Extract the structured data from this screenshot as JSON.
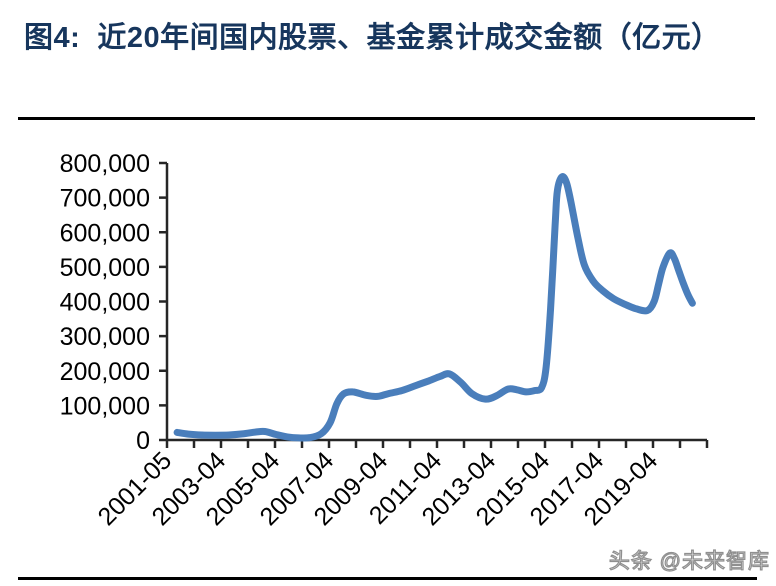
{
  "header": {
    "title": "图4:  近20年间国内股票、基金累计成交金额（亿元）",
    "title_color": "#17365D"
  },
  "watermark": {
    "text": "头条 @未来智库",
    "stroke_color": "#8f8f8f",
    "fill_color": "#efefef"
  },
  "chart_data": {
    "type": "line",
    "title": "近20年间国内股票、基金累计成交金额（亿元）",
    "unit": "亿元",
    "grid": false,
    "legend": false,
    "axis_color": "#262626",
    "y_axis": {
      "min": 0,
      "max": 800000,
      "step": 100000,
      "tick_labels": [
        "0",
        "100,000",
        "200,000",
        "300,000",
        "400,000",
        "500,000",
        "600,000",
        "700,000",
        "800,000"
      ]
    },
    "x_axis": {
      "start_year": 2001,
      "end_year": 2021,
      "minor_tick_every_years": 1,
      "label_every_years": 2,
      "tick_labels": [
        "2001-05",
        "2003-04",
        "2005-04",
        "2007-04",
        "2009-04",
        "2011-04",
        "2013-04",
        "2015-04",
        "2017-04",
        "2019-04"
      ]
    },
    "series": [
      {
        "name": "股票、基金累计成交金额",
        "color": "#4A7EBB",
        "line_width": 7,
        "points": [
          [
            "2001-05",
            22000
          ],
          [
            "2001-10",
            17000
          ],
          [
            "2002-04",
            14500
          ],
          [
            "2002-10",
            14000
          ],
          [
            "2003-04",
            14500
          ],
          [
            "2003-10",
            17500
          ],
          [
            "2004-04",
            23000
          ],
          [
            "2004-08",
            24500
          ],
          [
            "2005-01",
            16000
          ],
          [
            "2005-06",
            9000
          ],
          [
            "2005-11",
            6000
          ],
          [
            "2006-04",
            7000
          ],
          [
            "2006-09",
            18000
          ],
          [
            "2007-01",
            50000
          ],
          [
            "2007-04",
            105000
          ],
          [
            "2007-07",
            133000
          ],
          [
            "2007-11",
            139000
          ],
          [
            "2008-05",
            129000
          ],
          [
            "2008-10",
            126000
          ],
          [
            "2009-03",
            134000
          ],
          [
            "2009-09",
            143000
          ],
          [
            "2010-03",
            157000
          ],
          [
            "2010-09",
            171000
          ],
          [
            "2011-02",
            184000
          ],
          [
            "2011-06",
            191000
          ],
          [
            "2011-11",
            167000
          ],
          [
            "2012-04",
            134000
          ],
          [
            "2012-10",
            118000
          ],
          [
            "2013-03",
            128000
          ],
          [
            "2013-08",
            147000
          ],
          [
            "2013-12",
            145000
          ],
          [
            "2014-04",
            139000
          ],
          [
            "2014-08",
            143000
          ],
          [
            "2014-11",
            151000
          ],
          [
            "2015-01",
            210000
          ],
          [
            "2015-03",
            380000
          ],
          [
            "2015-05",
            620000
          ],
          [
            "2015-06",
            720000
          ],
          [
            "2015-08",
            760000
          ],
          [
            "2015-10",
            744000
          ],
          [
            "2015-12",
            688000
          ],
          [
            "2016-03",
            588000
          ],
          [
            "2016-06",
            505000
          ],
          [
            "2016-10",
            458000
          ],
          [
            "2017-02",
            432000
          ],
          [
            "2017-07",
            408000
          ],
          [
            "2017-12",
            392000
          ],
          [
            "2018-05",
            379000
          ],
          [
            "2018-10",
            374000
          ],
          [
            "2019-01",
            400000
          ],
          [
            "2019-03",
            450000
          ],
          [
            "2019-05",
            500000
          ],
          [
            "2019-08",
            540000
          ],
          [
            "2019-10",
            524000
          ],
          [
            "2019-12",
            488000
          ],
          [
            "2020-02",
            452000
          ],
          [
            "2020-04",
            420000
          ],
          [
            "2020-06",
            395000
          ]
        ]
      }
    ]
  }
}
